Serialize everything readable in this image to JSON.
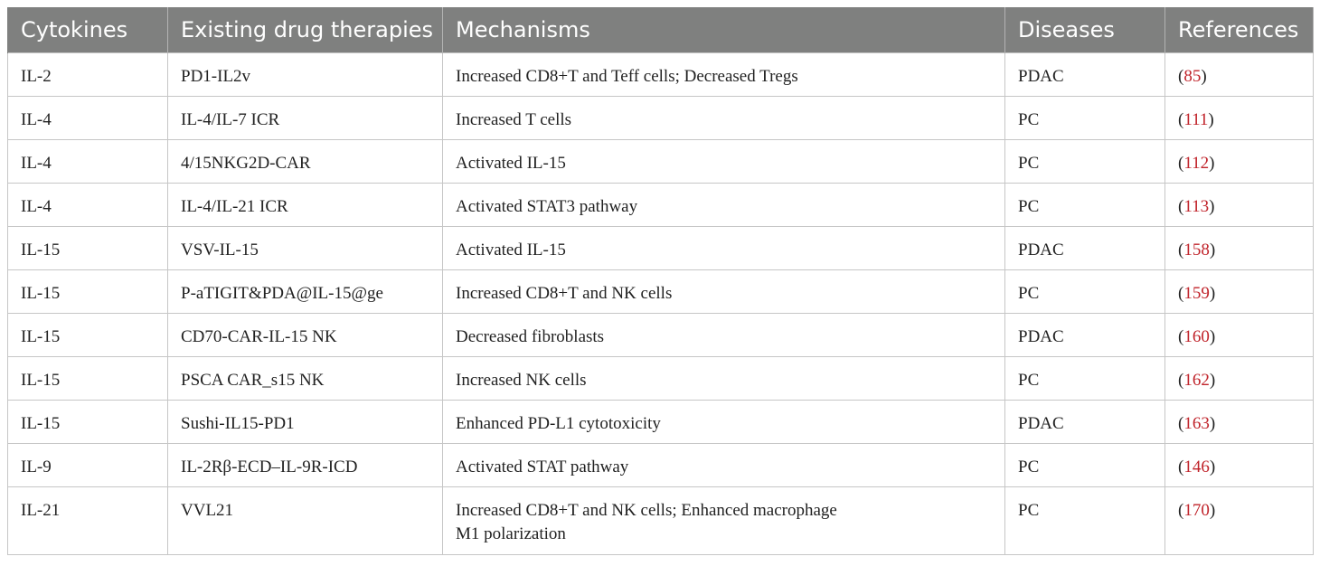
{
  "columns": [
    "Cytokines",
    "Existing drug therapies",
    "Mechanisms",
    "Diseases",
    "References"
  ],
  "rows": [
    {
      "cytokine": "IL-2",
      "therapy": "PD1-IL2v",
      "mechanism": "Increased CD8+T and Teff cells; Decreased Tregs",
      "disease": "PDAC",
      "ref": "85"
    },
    {
      "cytokine": "IL-4",
      "therapy": "IL-4/IL-7 ICR",
      "mechanism": "Increased T cells",
      "disease": "PC",
      "ref": "111"
    },
    {
      "cytokine": "IL-4",
      "therapy": "4/15NKG2D-CAR",
      "mechanism": "Activated IL-15",
      "disease": "PC",
      "ref": "112"
    },
    {
      "cytokine": "IL-4",
      "therapy": "IL-4/IL-21 ICR",
      "mechanism": "Activated STAT3 pathway",
      "disease": "PC",
      "ref": "113"
    },
    {
      "cytokine": "IL-15",
      "therapy": "VSV-IL-15",
      "mechanism": "Activated IL-15",
      "disease": "PDAC",
      "ref": "158"
    },
    {
      "cytokine": "IL-15",
      "therapy": "P-aTIGIT&PDA@IL-15@ge",
      "mechanism": "Increased CD8+T and NK cells",
      "disease": "PC",
      "ref": "159"
    },
    {
      "cytokine": "IL-15",
      "therapy": "CD70-CAR-IL-15 NK",
      "mechanism": "Decreased fibroblasts",
      "disease": "PDAC",
      "ref": "160"
    },
    {
      "cytokine": "IL-15",
      "therapy": "PSCA CAR_s15 NK",
      "mechanism": "Increased NK cells",
      "disease": "PC",
      "ref": "162"
    },
    {
      "cytokine": "IL-15",
      "therapy": "Sushi-IL15-PD1",
      "mechanism": "Enhanced PD-L1 cytotoxicity",
      "disease": "PDAC",
      "ref": "163"
    },
    {
      "cytokine": "IL-9",
      "therapy": "IL-2Rβ-ECD–IL-9R-ICD",
      "mechanism": "Activated STAT pathway",
      "disease": "PC",
      "ref": "146"
    },
    {
      "cytokine": "IL-21",
      "therapy": "VVL21",
      "mechanism_line1": "Increased CD8+T and NK cells; Enhanced macrophage",
      "mechanism_line2": "M1 polarization",
      "disease": "PC",
      "ref": "170"
    }
  ],
  "colors": {
    "header_bg": "#7f807f",
    "header_text": "#ffffff",
    "reference_link": "#c0232a",
    "border": "#c6c6c6"
  }
}
